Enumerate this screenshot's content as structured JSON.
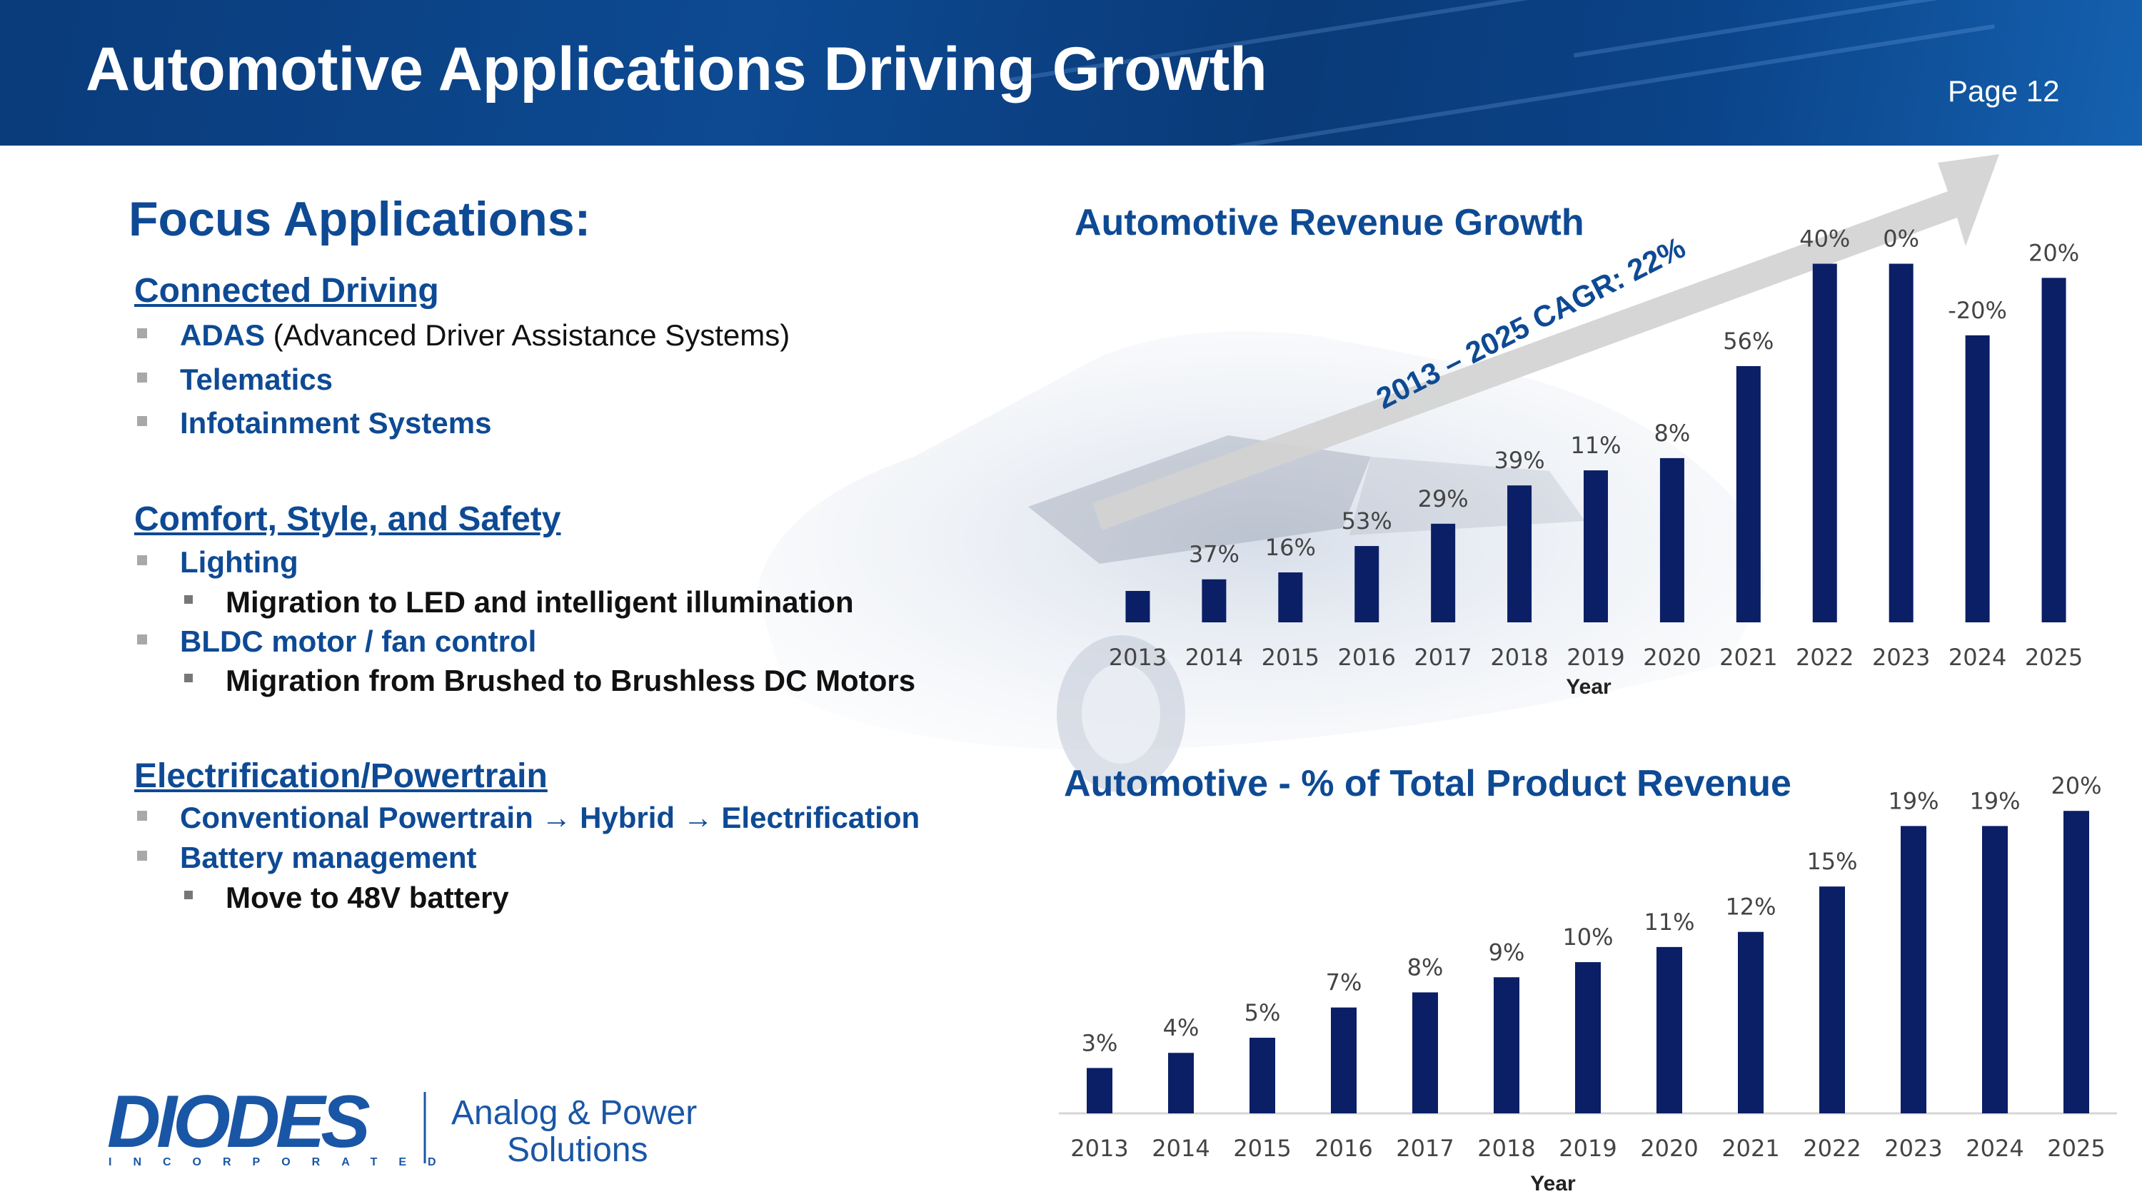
{
  "slide": {
    "title": "Automotive Applications Driving Growth",
    "page": "Page 12"
  },
  "focus": {
    "heading": "Focus Applications:",
    "sections": [
      {
        "title": "Connected Driving",
        "items": [
          {
            "bold": "ADAS",
            "normal": " (Advanced Driver Assistance Systems)"
          },
          {
            "bold": "Telematics",
            "normal": ""
          },
          {
            "bold": "Infotainment Systems",
            "normal": ""
          }
        ]
      },
      {
        "title": "Comfort, Style, and Safety",
        "items": [
          {
            "bold": "Lighting"
          },
          {
            "bold": "Migration to LED and intelligent illumination"
          },
          {
            "bold": "BLDC motor / fan control"
          },
          {
            "bold": "Migration from Brushed to Brushless DC Motors"
          }
        ]
      },
      {
        "title": "Electrification/Powertrain",
        "items": [
          {
            "bold": "Conventional Powertrain → Hybrid → Electrification"
          },
          {
            "bold": "Battery management"
          },
          {
            "bold": "Move to 48V battery"
          }
        ]
      }
    ]
  },
  "logo": {
    "brand": "DIODES",
    "sub": "INCORPORATED",
    "tagline_1": "Analog & Power",
    "tagline_2": "Solutions"
  },
  "colors": {
    "bar": "#0b1f66",
    "accent": "#0e4a94",
    "arrow": "#d0d0d0"
  },
  "chart_data": [
    {
      "type": "bar",
      "title": "Automotive Revenue Growth",
      "xlabel": "Year",
      "ylabel": "",
      "categories": [
        "2013",
        "2014",
        "2015",
        "2016",
        "2017",
        "2018",
        "2019",
        "2020",
        "2021",
        "2022",
        "2023",
        "2024",
        "2025"
      ],
      "values": [
        1.0,
        1.37,
        1.59,
        2.43,
        3.14,
        4.36,
        4.84,
        5.23,
        8.16,
        11.42,
        11.42,
        9.14,
        10.97
      ],
      "labels": [
        "",
        "37%",
        "16%",
        "53%",
        "29%",
        "39%",
        "11%",
        "8%",
        "56%",
        "40%",
        "0%",
        "-20%",
        "20%"
      ],
      "annotation": "2013 – 2025 CAGR: 22%",
      "ylim": [
        0,
        12
      ]
    },
    {
      "type": "bar",
      "title": "Automotive - % of Total Product Revenue",
      "xlabel": "Year",
      "ylabel": "",
      "categories": [
        "2013",
        "2014",
        "2015",
        "2016",
        "2017",
        "2018",
        "2019",
        "2020",
        "2021",
        "2022",
        "2023",
        "2024",
        "2025"
      ],
      "values": [
        3,
        4,
        5,
        7,
        8,
        9,
        10,
        11,
        12,
        15,
        19,
        19,
        20
      ],
      "labels": [
        "3%",
        "4%",
        "5%",
        "7%",
        "8%",
        "9%",
        "10%",
        "11%",
        "12%",
        "15%",
        "19%",
        "19%",
        "20%"
      ],
      "ylim": [
        0,
        21
      ]
    }
  ]
}
